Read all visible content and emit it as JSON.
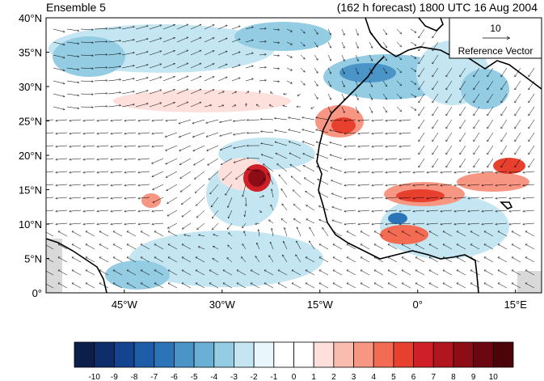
{
  "title_left": "Ensemble 5",
  "title_right": "(162 h forecast) 1800 UTC 16 Aug 2004",
  "map": {
    "lat_range": [
      0,
      40
    ],
    "lon_range": [
      -57,
      19
    ],
    "lat_ticks": [
      "40°N",
      "35°N",
      "30°N",
      "25°N",
      "20°N",
      "15°N",
      "10°N",
      "5°N",
      "0°"
    ],
    "lon_ticks": [
      "45°W",
      "30°W",
      "15°W",
      "0°",
      "15°E"
    ]
  },
  "reference_vector": {
    "value": "10",
    "label": "Reference Vector"
  },
  "colorbar": {
    "labels": [
      "-10",
      "-9",
      "-8",
      "-7",
      "-6",
      "-5",
      "-4",
      "-3",
      "-2",
      "-1",
      "0",
      "1",
      "2",
      "3",
      "4",
      "5",
      "6",
      "7",
      "8",
      "9",
      "10"
    ],
    "colors": [
      "#0c1f4a",
      "#0e2d6b",
      "#14448f",
      "#1e5ea8",
      "#2c74b8",
      "#4a94c8",
      "#6ab0d6",
      "#93cce3",
      "#c4e6f2",
      "#e9f6fb",
      "#ffffff",
      "#ffffff",
      "#fde0dc",
      "#fbbcb0",
      "#f79682",
      "#f26b52",
      "#e8402e",
      "#cf2027",
      "#b1161f",
      "#8c0d16",
      "#6a0710",
      "#4a040a"
    ]
  }
}
